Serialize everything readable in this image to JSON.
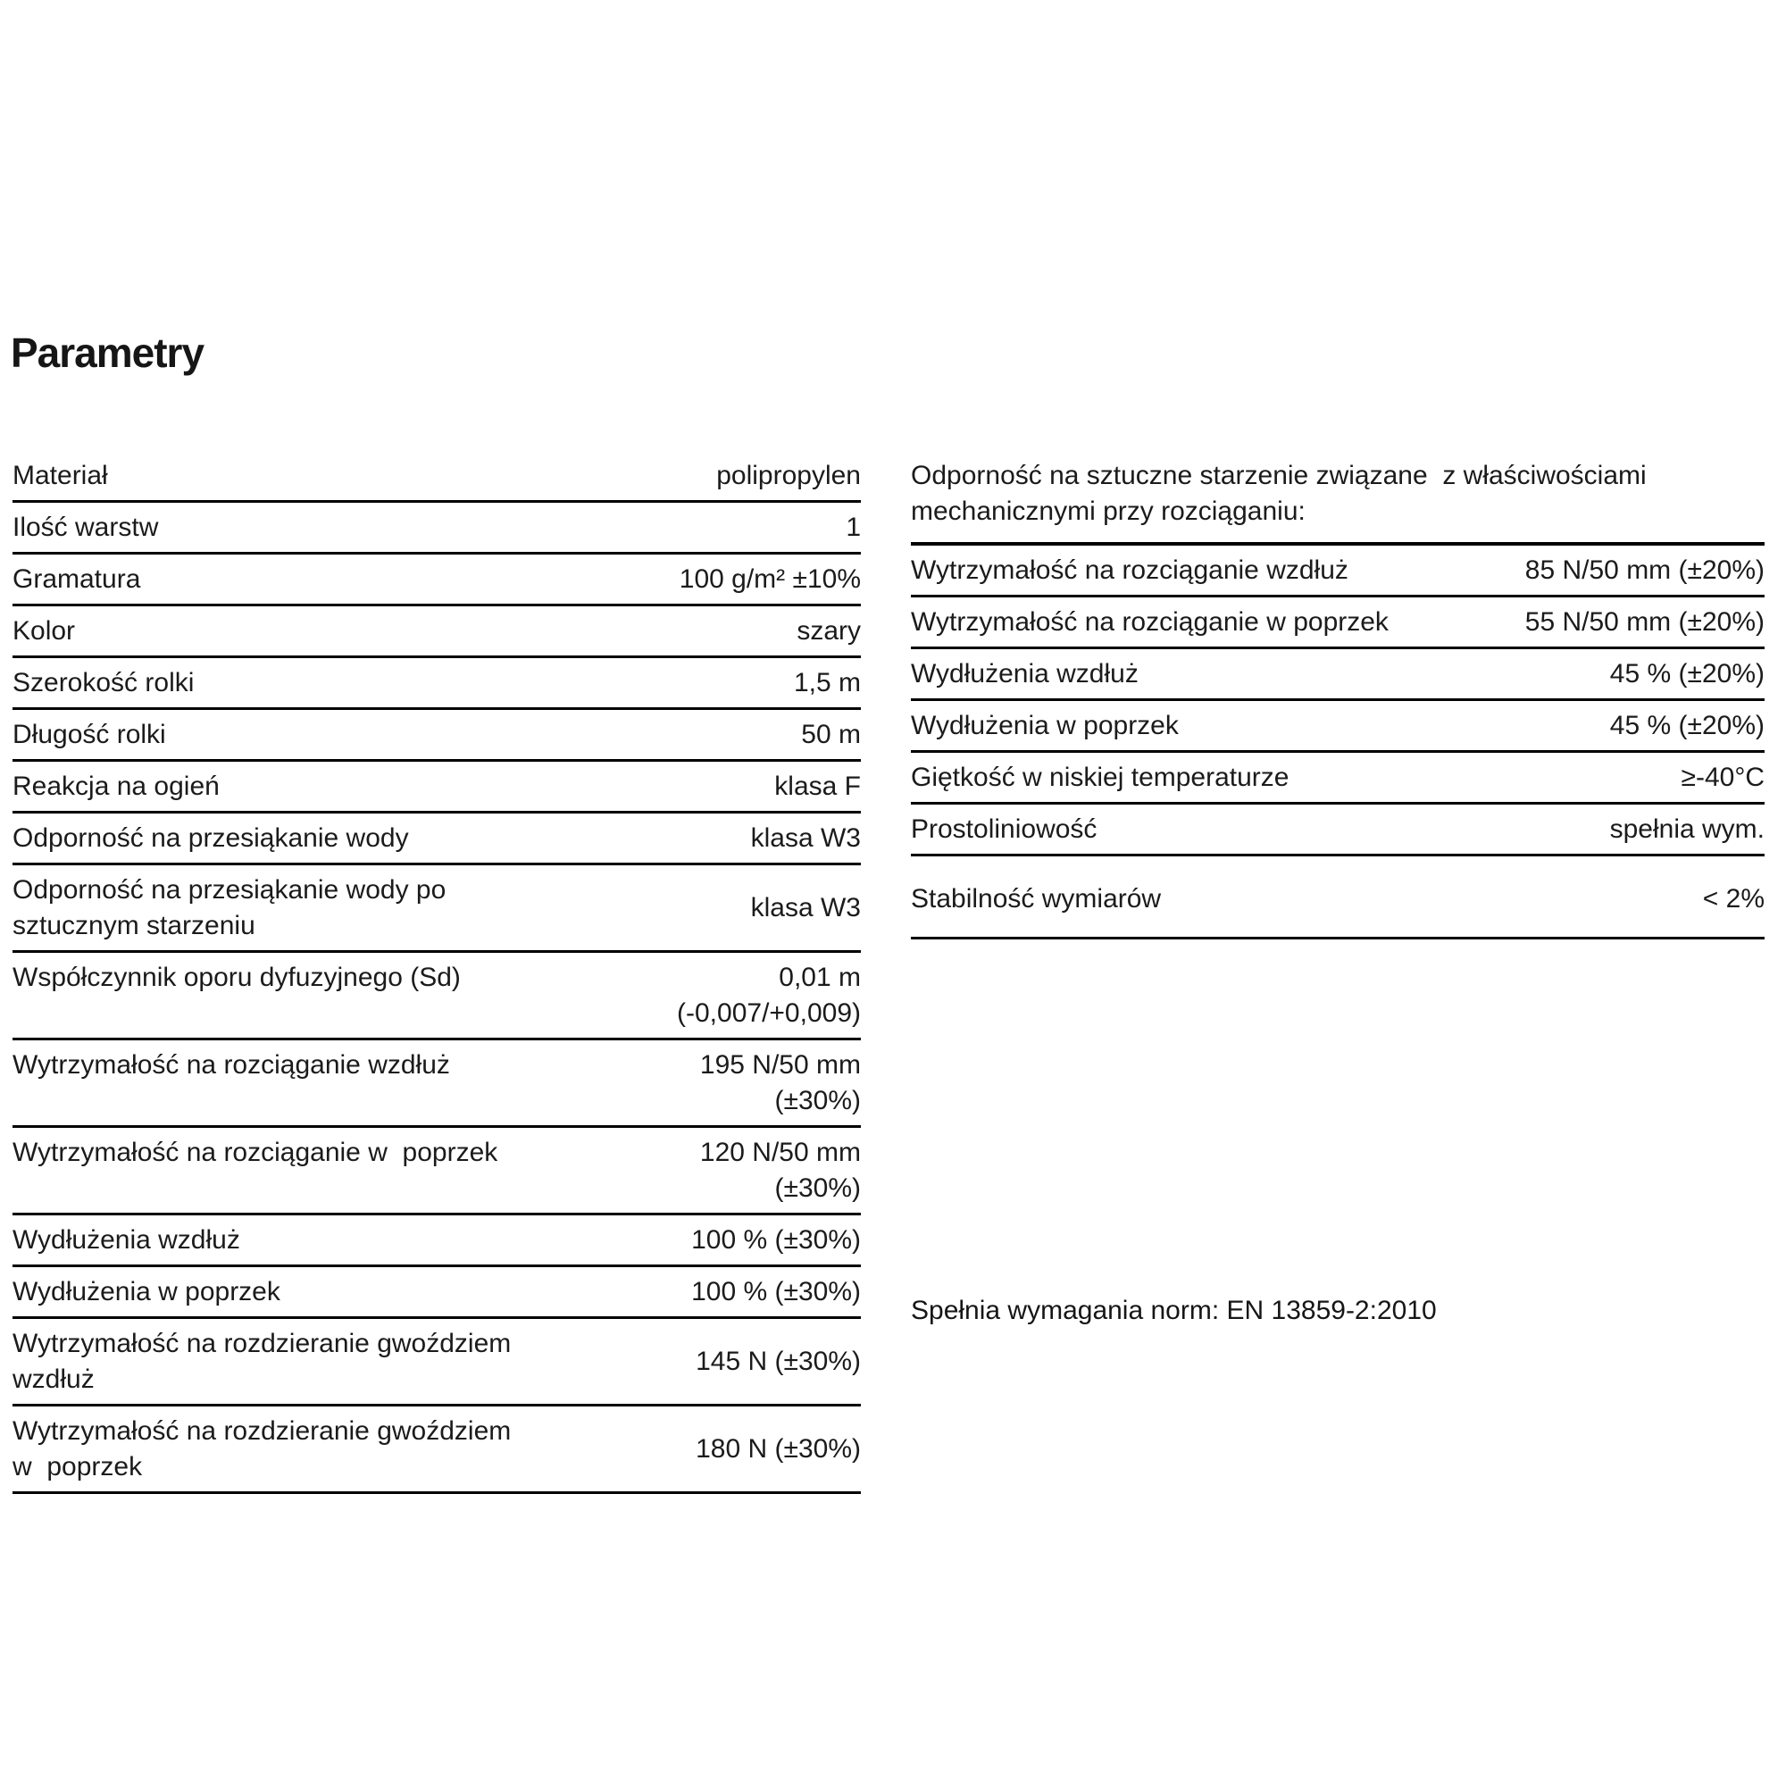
{
  "page": {
    "title": "Parametry"
  },
  "colors": {
    "text": "#1b1b1b",
    "line": "#000000",
    "background": "#ffffff"
  },
  "left_table": {
    "rows": [
      {
        "label": "Materiał",
        "value": "polipropylen"
      },
      {
        "label": "Ilość warstw",
        "value": "1"
      },
      {
        "label": "Gramatura",
        "value": "100 g/m² ±10%"
      },
      {
        "label": "Kolor",
        "value": "szary"
      },
      {
        "label": "Szerokość rolki",
        "value": "1,5 m"
      },
      {
        "label": "Długość rolki",
        "value": "50 m"
      },
      {
        "label": "Reakcja na ogień",
        "value": "klasa F"
      },
      {
        "label": "Odporność na przesiąkanie wody",
        "value": "klasa W3"
      },
      {
        "label": "Odporność na przesiąkanie wody po\nsztucznym starzeniu",
        "value": "klasa W3",
        "value_valign": "center"
      },
      {
        "label": "Współczynnik oporu dyfuzyjnego (Sd)",
        "value": "0,01 m\n(-0,007/+0,009)"
      },
      {
        "label": "Wytrzymałość na rozciąganie wzdłuż",
        "value": "195 N/50 mm\n(±30%)"
      },
      {
        "label": "Wytrzymałość na rozciąganie w  poprzek",
        "value": "120 N/50 mm\n(±30%)"
      },
      {
        "label": "Wydłużenia wzdłuż",
        "value": "100 % (±30%)"
      },
      {
        "label": "Wydłużenia w poprzek",
        "value": "100 % (±30%)"
      },
      {
        "label": "Wytrzymałość na rozdzieranie gwoździem\nwzdłuż",
        "value": "145 N (±30%)",
        "value_valign": "center"
      },
      {
        "label": "Wytrzymałość na rozdzieranie gwoździem\nw  poprzek",
        "value": "180 N (±30%)",
        "value_valign": "center"
      }
    ]
  },
  "right_table": {
    "header": "Odporność na sztuczne starzenie związane  z właściwościami\nmechanicznymi przy rozciąganiu:",
    "rows": [
      {
        "label": "Wytrzymałość na rozciąganie wzdłuż",
        "value": "85 N/50 mm (±20%)"
      },
      {
        "label": "Wytrzymałość na rozciąganie w poprzek",
        "value": "55 N/50 mm (±20%)"
      },
      {
        "label": "Wydłużenia wzdłuż",
        "value": "45 % (±20%)"
      },
      {
        "label": "Wydłużenia w poprzek",
        "value": "45 % (±20%)"
      },
      {
        "label": "Giętkość w niskiej temperaturze",
        "value": "≥-40°C"
      },
      {
        "label": "Prostoliniowość",
        "value": "spełnia wym."
      },
      {
        "label": "Stabilność wymiarów",
        "value": "< 2%"
      }
    ]
  },
  "footer_note": "Spełnia wymagania norm: EN 13859-2:2010"
}
